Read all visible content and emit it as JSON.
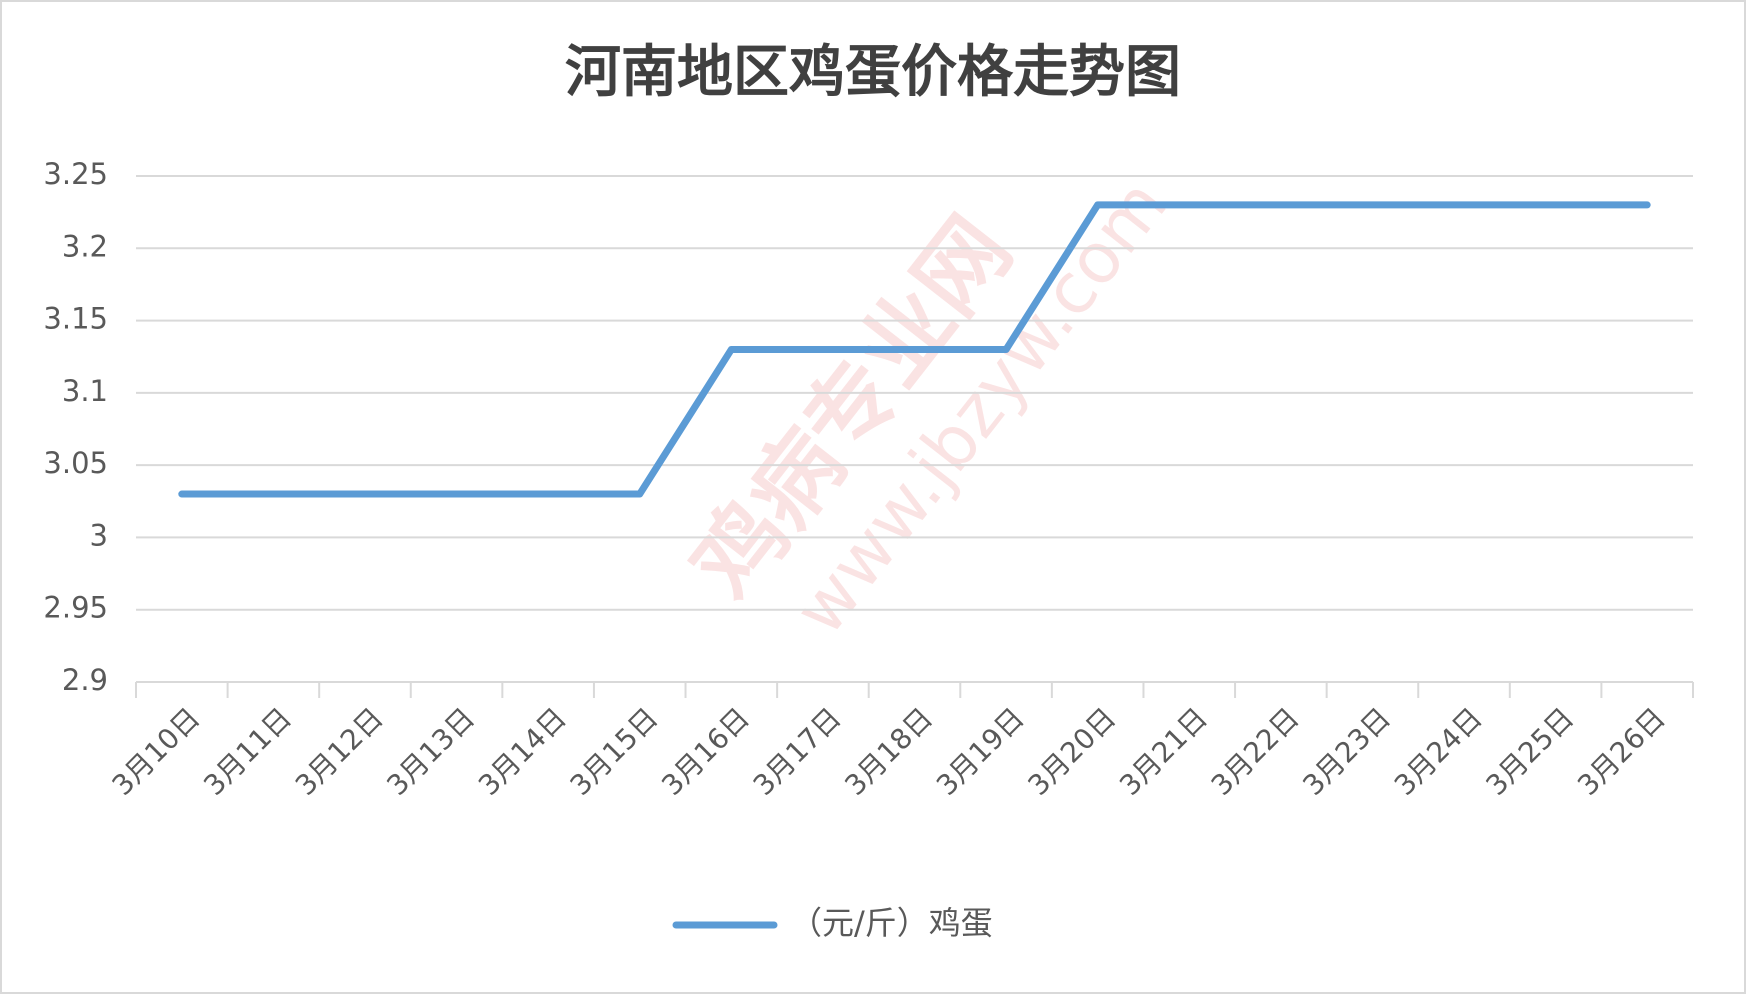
{
  "chart_data": {
    "type": "line",
    "title": "河南地区鸡蛋价格走势图",
    "categories": [
      "3月10日",
      "3月11日",
      "3月12日",
      "3月13日",
      "3月14日",
      "3月15日",
      "3月16日",
      "3月17日",
      "3月18日",
      "3月19日",
      "3月20日",
      "3月21日",
      "3月22日",
      "3月23日",
      "3月24日",
      "3月25日",
      "3月26日"
    ],
    "series": [
      {
        "name": "（元/斤）鸡蛋",
        "color": "#5b9bd5",
        "values": [
          3.03,
          3.03,
          3.03,
          3.03,
          3.03,
          3.03,
          3.13,
          3.13,
          3.13,
          3.13,
          3.23,
          3.23,
          3.23,
          3.23,
          3.23,
          3.23,
          3.23
        ]
      }
    ],
    "ylim": [
      2.9,
      3.25
    ],
    "yticks": [
      2.9,
      2.95,
      3,
      3.05,
      3.1,
      3.15,
      3.2,
      3.25
    ],
    "grid": true,
    "legend": "bottom",
    "watermark": [
      "鸡病专业网",
      "www.jbzyw.com"
    ]
  }
}
